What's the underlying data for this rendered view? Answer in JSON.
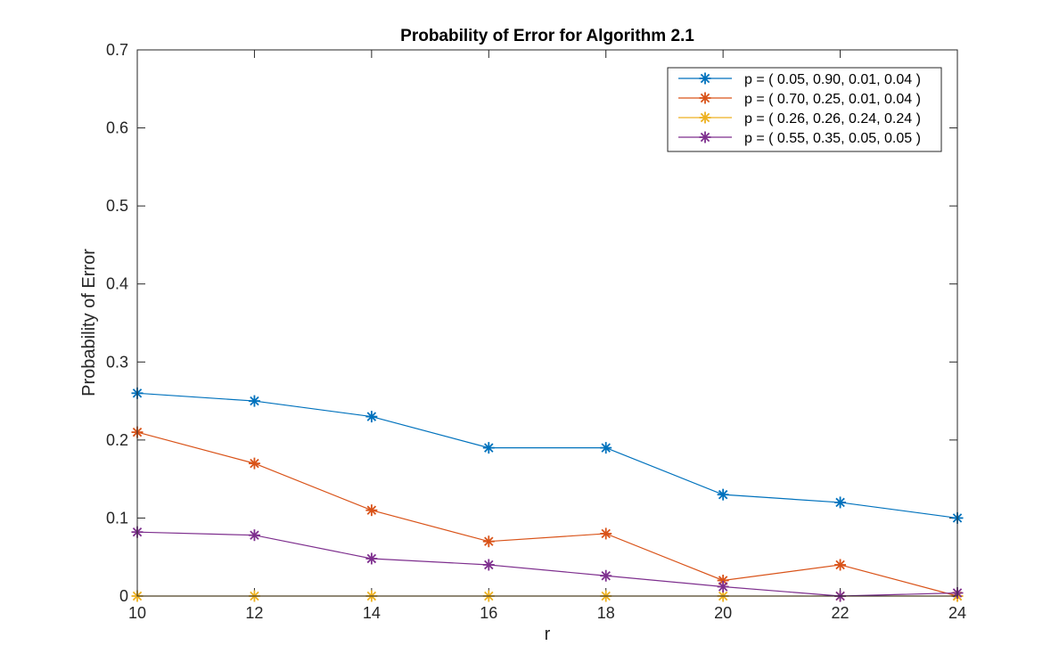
{
  "chart_data": {
    "type": "line",
    "title": "Probability of Error for Algorithm 2.1",
    "xlabel": "r",
    "ylabel": "Probability of Error",
    "xlim": [
      10,
      24
    ],
    "ylim": [
      0,
      0.7
    ],
    "x": [
      10,
      12,
      14,
      16,
      18,
      20,
      22,
      24
    ],
    "xticks": [
      "10",
      "12",
      "14",
      "16",
      "18",
      "20",
      "22",
      "24"
    ],
    "yticks": [
      "0",
      "0.1",
      "0.2",
      "0.3",
      "0.4",
      "0.5",
      "0.6",
      "0.7"
    ],
    "legend_position": "top-right",
    "grid": false,
    "marker": "asterisk",
    "series": [
      {
        "name": "p = ( 0.05, 0.90, 0.01, 0.04 )",
        "color": "#0072BD",
        "values": [
          0.26,
          0.25,
          0.23,
          0.19,
          0.19,
          0.13,
          0.12,
          0.1
        ]
      },
      {
        "name": "p = ( 0.70, 0.25, 0.01, 0.04 )",
        "color": "#D95319",
        "values": [
          0.21,
          0.17,
          0.11,
          0.07,
          0.08,
          0.02,
          0.04,
          0.0
        ]
      },
      {
        "name": "p = ( 0.26, 0.26, 0.24, 0.24 )",
        "color": "#EDB120",
        "values": [
          0.0,
          0.0,
          0.0,
          0.0,
          0.0,
          0.0,
          0.0,
          0.0
        ]
      },
      {
        "name": "p = ( 0.55, 0.35, 0.05, 0.05 )",
        "color": "#7E2F8E",
        "values": [
          0.082,
          0.078,
          0.048,
          0.04,
          0.026,
          0.012,
          0.0,
          0.004
        ]
      }
    ]
  }
}
